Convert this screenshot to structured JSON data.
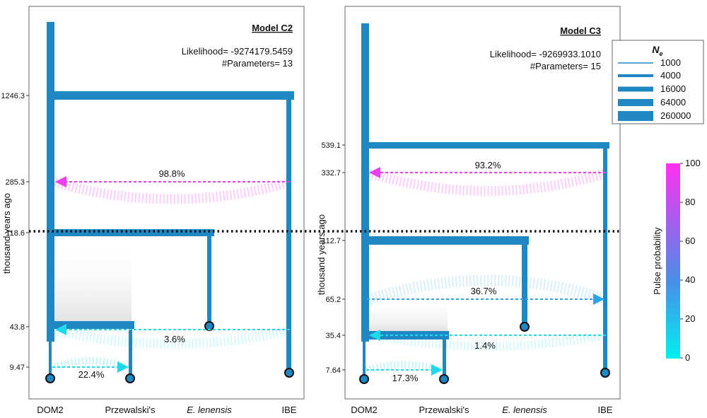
{
  "colors": {
    "branch": "#1f88c2",
    "panel_border": "#666666",
    "pulse_magenta": "#ee3cf0",
    "pulse_cyan": "#1ed8ec",
    "pulse_mid": "#2aa6e8",
    "dotted_line": "#111111"
  },
  "y_axis_label": "thousand years ago",
  "x_tick_labels": [
    "DOM2",
    "Przewalski's",
    "E. lenensis",
    "IBE"
  ],
  "panels": [
    {
      "title": "Model C2",
      "likelihood": "Likelihood= -9274179.5459",
      "parameters": "#Parameters= 13",
      "y_ticks": [
        "1246.3",
        "285.3",
        "118.6",
        "43.8",
        "9.47"
      ],
      "pulses": [
        {
          "label": "98.8%",
          "probability": 98.8,
          "from": "IBE",
          "to": "DOM2"
        },
        {
          "label": "3.6%",
          "probability": 3.6,
          "from": "IBE",
          "to": "DOM2"
        },
        {
          "label": "22.4%",
          "probability": 22.4,
          "from": "DOM2",
          "to": "Przewalski's"
        }
      ]
    },
    {
      "title": "Model C3",
      "likelihood": "Likelihood= -9269933.1010",
      "parameters": "#Parameters= 15",
      "y_ticks": [
        "539.1",
        "332.7",
        "112.7",
        "65.2",
        "35.4",
        "7.64"
      ],
      "pulses": [
        {
          "label": "93.2%",
          "probability": 93.2,
          "from": "IBE",
          "to": "DOM2"
        },
        {
          "label": "36.7%",
          "probability": 36.7,
          "from": "DOM2",
          "to": "IBE"
        },
        {
          "label": "1.4%",
          "probability": 1.4,
          "from": "IBE",
          "to": "DOM2"
        },
        {
          "label": "17.3%",
          "probability": 17.3,
          "from": "DOM2",
          "to": "Przewalski's"
        }
      ]
    }
  ],
  "legend": {
    "title": "N",
    "title_subscript": "e",
    "items": [
      "1000",
      "4000",
      "16000",
      "64000",
      "260000"
    ]
  },
  "colorbar": {
    "label": "Pulse probability",
    "ticks": [
      "100",
      "80",
      "60",
      "40",
      "20",
      "0"
    ],
    "min": 0,
    "max": 100,
    "color_low": "#00f0f0",
    "color_mid": "#4a8de8",
    "color_high": "#ff2ef0"
  }
}
